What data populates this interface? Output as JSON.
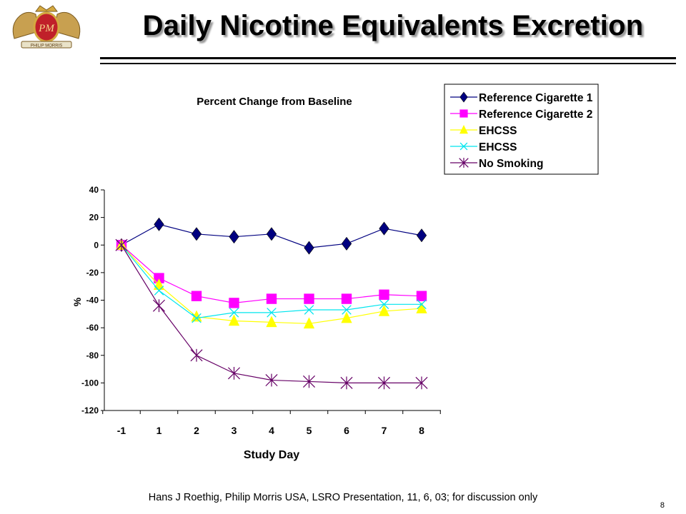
{
  "slide": {
    "title": "Daily Nicotine Equivalents Excretion",
    "footer": "Hans J Roethig, Philip Morris USA, LSRO Presentation, 11, 6, 03; for discussion only",
    "page_number": "8",
    "logo_text": "PM",
    "logo_banner": "PHILIP MORRIS"
  },
  "chart_data": {
    "type": "line",
    "title": "Percent Change from Baseline",
    "xlabel": "Study Day",
    "ylabel": "%",
    "categories": [
      "-1",
      "1",
      "2",
      "3",
      "4",
      "5",
      "6",
      "7",
      "8"
    ],
    "ylim": [
      -120,
      40
    ],
    "yticks": [
      40,
      20,
      0,
      -20,
      -40,
      -60,
      -80,
      -100,
      -120
    ],
    "grid": false,
    "legend_position": "top-right",
    "series": [
      {
        "name": "Reference Cigarette 1",
        "color": "#000080",
        "marker": "diamond",
        "values": [
          0,
          15,
          8,
          6,
          8,
          -2,
          1,
          12,
          7
        ]
      },
      {
        "name": "Reference Cigarette 2",
        "color": "#ff00ff",
        "marker": "square",
        "values": [
          0,
          -24,
          -37,
          -42,
          -39,
          -39,
          -39,
          -36,
          -37
        ]
      },
      {
        "name": "EHCSS",
        "color": "#ffff00",
        "marker": "triangle",
        "values": [
          0,
          -29,
          -52,
          -55,
          -56,
          -57,
          -53,
          -48,
          -46
        ]
      },
      {
        "name": "EHCSS",
        "color": "#00e5ee",
        "marker": "x",
        "values": [
          0,
          -33,
          -53,
          -49,
          -49,
          -47,
          -47,
          -43,
          -43
        ]
      },
      {
        "name": "No Smoking",
        "color": "#660066",
        "marker": "asterisk",
        "values": [
          0,
          -44,
          -80,
          -93,
          -98,
          -99,
          -100,
          -100,
          -100
        ]
      }
    ]
  }
}
